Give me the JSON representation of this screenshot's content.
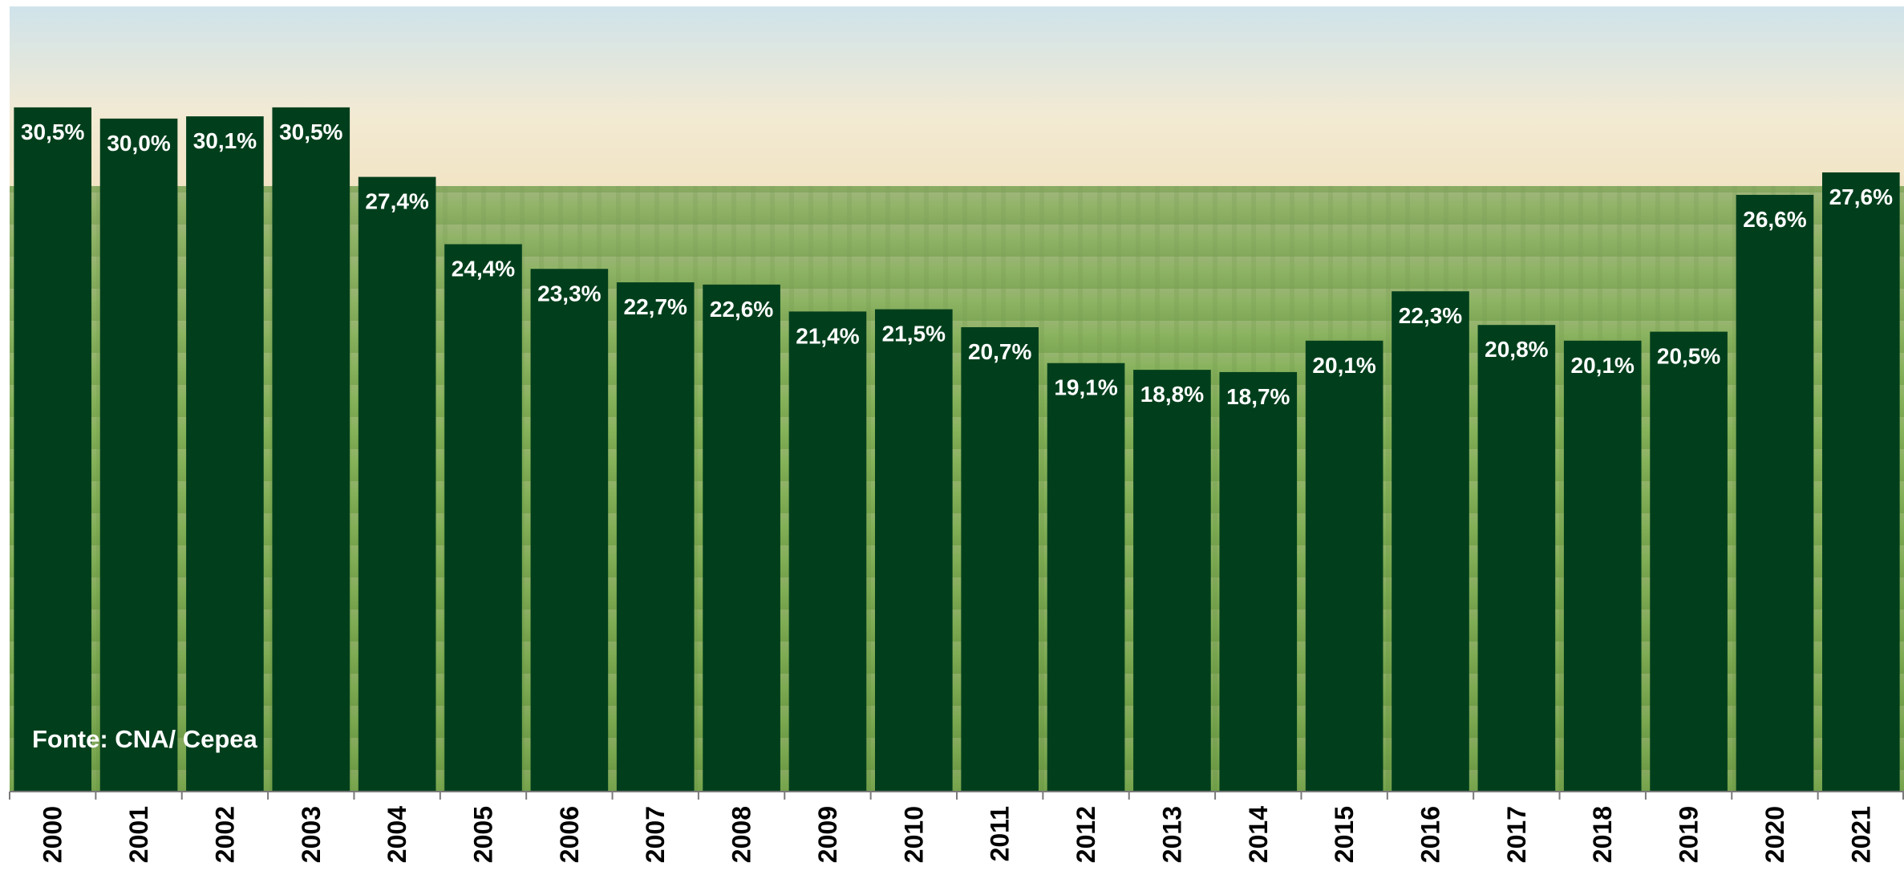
{
  "chart_data": {
    "type": "bar",
    "categories": [
      "2000",
      "2001",
      "2002",
      "2003",
      "2004",
      "2005",
      "2006",
      "2007",
      "2008",
      "2009",
      "2010",
      "2011",
      "2012",
      "2013",
      "2014",
      "2015",
      "2016",
      "2017",
      "2018",
      "2019",
      "2020",
      "2021"
    ],
    "values": [
      30.5,
      30.0,
      30.1,
      30.5,
      27.4,
      24.4,
      23.3,
      22.7,
      22.6,
      21.4,
      21.5,
      20.7,
      19.1,
      18.8,
      18.7,
      20.1,
      22.3,
      20.8,
      20.1,
      20.5,
      26.6,
      27.6
    ],
    "value_labels": [
      "30,5%",
      "30,0%",
      "30,1%",
      "30,5%",
      "27,4%",
      "24,4%",
      "23,3%",
      "22,7%",
      "22,6%",
      "21,4%",
      "21,5%",
      "20,7%",
      "19,1%",
      "18,8%",
      "18,7%",
      "20,1%",
      "22,3%",
      "20,8%",
      "20,1%",
      "20,5%",
      "26,6%",
      "27,6%"
    ],
    "color": "#013f1c",
    "ylim": [
      0,
      35
    ],
    "source": "Fonte: CNA/ Cepea"
  }
}
